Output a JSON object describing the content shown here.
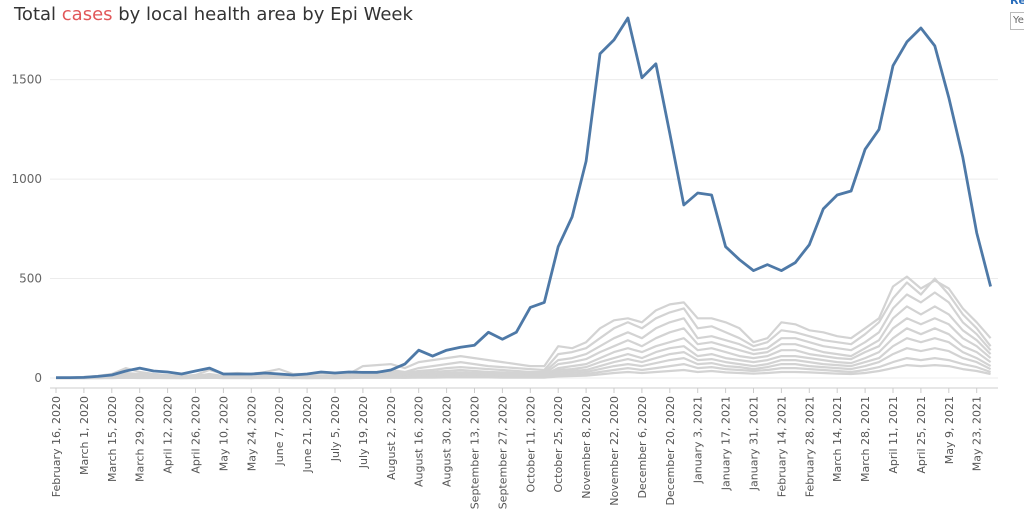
{
  "title": {
    "prefix": "Total ",
    "highlight": "cases",
    "suffix": " by local health area by Epi Week"
  },
  "side_control": {
    "label": "Re",
    "value": "Ye"
  },
  "colors": {
    "highlight_line": "#4e79a7",
    "other_lines": "#d3d3d3",
    "title_highlight": "#e15759"
  },
  "chart_data": {
    "type": "line",
    "title": "Total cases by local health area by Epi Week",
    "xlabel": "",
    "ylabel": "",
    "ylim": [
      0,
      1800
    ],
    "yticks": [
      0,
      500,
      1000,
      1500
    ],
    "grid": true,
    "xtick_labels": [
      "February 16, 2020",
      "March 1, 2020",
      "March 15, 2020",
      "March 29, 2020",
      "April 12, 2020",
      "April 26, 2020",
      "May 10, 2020",
      "May 24, 2020",
      "June 7, 2020",
      "June 21, 2020",
      "July 5, 2020",
      "July 19, 2020",
      "August 2, 2020",
      "August 16, 2020",
      "August 30, 2020",
      "September 13, 2020",
      "September 27, 2020",
      "October 11, 2020",
      "October 25, 2020",
      "November 8, 2020",
      "November 22, 2020",
      "December 6, 2020",
      "December 20, 2020",
      "January 3, 2021",
      "January 17, 2021",
      "January 31, 2021",
      "February 14, 2021",
      "February 28, 2021",
      "March 14, 2021",
      "March 28, 2021",
      "April 11, 2021",
      "April 25, 2021",
      "May 9, 2021",
      "May 23, 2021"
    ],
    "highlighted_series": {
      "values": [
        2,
        2,
        3,
        8,
        15,
        35,
        50,
        35,
        30,
        20,
        35,
        50,
        20,
        20,
        20,
        25,
        20,
        15,
        20,
        30,
        25,
        30,
        28,
        28,
        40,
        70,
        140,
        110,
        140,
        155,
        165,
        230,
        195,
        230,
        355,
        380,
        660,
        810,
        1090,
        1630,
        1700,
        1810,
        1510,
        1580,
        1230,
        870,
        930,
        920,
        660,
        595,
        540,
        570,
        540,
        580,
        670,
        850,
        920,
        940,
        1150,
        1250,
        1570,
        1690,
        1760,
        1670,
        1410,
        1110,
        730,
        460
      ]
    },
    "other_series": [
      {
        "values": [
          0,
          0,
          5,
          10,
          20,
          50,
          30,
          20,
          15,
          10,
          15,
          40,
          20,
          25,
          20,
          30,
          45,
          20,
          20,
          25,
          20,
          20,
          60,
          65,
          70,
          50,
          80,
          90,
          100,
          110,
          100,
          90,
          80,
          70,
          60,
          60,
          160,
          150,
          180,
          250,
          290,
          300,
          280,
          340,
          370,
          380,
          300,
          300,
          280,
          250,
          180,
          200,
          280,
          270,
          240,
          230,
          210,
          200,
          250,
          300,
          460,
          510,
          450,
          490,
          450,
          350,
          280,
          200
        ]
      },
      {
        "values": [
          0,
          0,
          2,
          5,
          10,
          25,
          20,
          15,
          12,
          8,
          10,
          20,
          10,
          12,
          10,
          15,
          20,
          10,
          10,
          12,
          10,
          12,
          30,
          30,
          40,
          30,
          50,
          60,
          70,
          80,
          70,
          60,
          55,
          50,
          45,
          40,
          120,
          130,
          150,
          200,
          250,
          280,
          250,
          300,
          330,
          350,
          250,
          260,
          230,
          200,
          160,
          180,
          240,
          230,
          210,
          190,
          180,
          170,
          220,
          280,
          400,
          480,
          420,
          500,
          420,
          320,
          250,
          160
        ]
      },
      {
        "values": [
          0,
          0,
          1,
          3,
          8,
          15,
          12,
          10,
          8,
          5,
          6,
          15,
          8,
          8,
          6,
          10,
          15,
          8,
          6,
          8,
          6,
          8,
          20,
          25,
          30,
          25,
          35,
          40,
          50,
          55,
          50,
          45,
          40,
          35,
          30,
          30,
          90,
          100,
          120,
          160,
          200,
          230,
          200,
          250,
          280,
          300,
          200,
          210,
          190,
          170,
          140,
          150,
          200,
          200,
          180,
          160,
          150,
          140,
          180,
          230,
          350,
          420,
          380,
          430,
          380,
          280,
          220,
          140
        ]
      },
      {
        "values": [
          0,
          0,
          1,
          2,
          5,
          10,
          8,
          6,
          5,
          3,
          4,
          10,
          5,
          5,
          4,
          7,
          10,
          5,
          4,
          5,
          4,
          5,
          15,
          18,
          20,
          18,
          25,
          30,
          35,
          40,
          35,
          30,
          28,
          25,
          22,
          22,
          70,
          80,
          95,
          130,
          160,
          190,
          160,
          200,
          230,
          250,
          170,
          180,
          160,
          140,
          120,
          130,
          170,
          170,
          150,
          130,
          120,
          110,
          150,
          190,
          300,
          360,
          320,
          360,
          320,
          240,
          190,
          120
        ]
      },
      {
        "values": [
          0,
          0,
          0,
          1,
          3,
          6,
          5,
          4,
          3,
          2,
          3,
          6,
          3,
          3,
          2,
          4,
          6,
          3,
          2,
          3,
          2,
          3,
          10,
          12,
          15,
          12,
          18,
          20,
          25,
          28,
          25,
          22,
          20,
          18,
          16,
          16,
          50,
          60,
          70,
          100,
          130,
          150,
          130,
          160,
          180,
          200,
          140,
          150,
          130,
          110,
          100,
          110,
          140,
          140,
          120,
          110,
          100,
          95,
          130,
          160,
          250,
          300,
          270,
          300,
          270,
          200,
          160,
          100
        ]
      },
      {
        "values": [
          0,
          0,
          0,
          1,
          2,
          4,
          3,
          2,
          2,
          1,
          2,
          4,
          2,
          2,
          1,
          2,
          4,
          2,
          1,
          2,
          1,
          2,
          8,
          9,
          11,
          9,
          12,
          15,
          18,
          20,
          18,
          16,
          15,
          13,
          12,
          12,
          40,
          45,
          55,
          80,
          100,
          120,
          100,
          130,
          150,
          160,
          110,
          120,
          100,
          90,
          80,
          90,
          110,
          110,
          100,
          90,
          80,
          75,
          100,
          130,
          200,
          250,
          220,
          250,
          220,
          160,
          130,
          80
        ]
      },
      {
        "values": [
          0,
          0,
          0,
          0,
          1,
          3,
          2,
          2,
          1,
          1,
          1,
          3,
          1,
          1,
          1,
          2,
          3,
          1,
          1,
          1,
          1,
          1,
          5,
          6,
          8,
          6,
          9,
          10,
          12,
          14,
          12,
          11,
          10,
          9,
          8,
          8,
          30,
          35,
          40,
          60,
          80,
          95,
          80,
          100,
          120,
          130,
          90,
          95,
          80,
          70,
          60,
          70,
          90,
          90,
          80,
          70,
          65,
          60,
          80,
          100,
          160,
          200,
          180,
          200,
          180,
          130,
          100,
          60
        ]
      },
      {
        "values": [
          0,
          0,
          0,
          0,
          1,
          2,
          1,
          1,
          1,
          0,
          1,
          2,
          1,
          1,
          0,
          1,
          2,
          1,
          0,
          1,
          0,
          1,
          3,
          4,
          5,
          4,
          6,
          7,
          8,
          9,
          8,
          7,
          6,
          6,
          5,
          5,
          20,
          25,
          30,
          45,
          60,
          70,
          60,
          75,
          90,
          100,
          70,
          75,
          60,
          55,
          45,
          55,
          70,
          70,
          60,
          55,
          50,
          45,
          60,
          80,
          120,
          150,
          135,
          150,
          135,
          100,
          80,
          45
        ]
      },
      {
        "values": [
          0,
          0,
          0,
          0,
          0,
          1,
          1,
          1,
          0,
          0,
          0,
          1,
          0,
          0,
          0,
          1,
          1,
          0,
          0,
          0,
          0,
          0,
          2,
          2,
          3,
          2,
          4,
          4,
          5,
          6,
          5,
          5,
          4,
          4,
          3,
          3,
          12,
          15,
          20,
          30,
          40,
          50,
          40,
          50,
          60,
          70,
          50,
          55,
          45,
          40,
          35,
          40,
          50,
          50,
          45,
          40,
          35,
          30,
          40,
          55,
          80,
          100,
          90,
          100,
          90,
          70,
          55,
          30
        ]
      },
      {
        "values": [
          0,
          0,
          0,
          0,
          0,
          1,
          0,
          0,
          0,
          0,
          0,
          1,
          0,
          0,
          0,
          0,
          1,
          0,
          0,
          0,
          0,
          0,
          1,
          1,
          2,
          1,
          2,
          2,
          3,
          3,
          3,
          3,
          2,
          2,
          2,
          2,
          8,
          10,
          12,
          18,
          25,
          30,
          25,
          30,
          35,
          40,
          30,
          35,
          28,
          25,
          22,
          25,
          30,
          30,
          28,
          25,
          22,
          20,
          25,
          35,
          50,
          65,
          60,
          65,
          60,
          45,
          35,
          20
        ]
      }
    ]
  }
}
